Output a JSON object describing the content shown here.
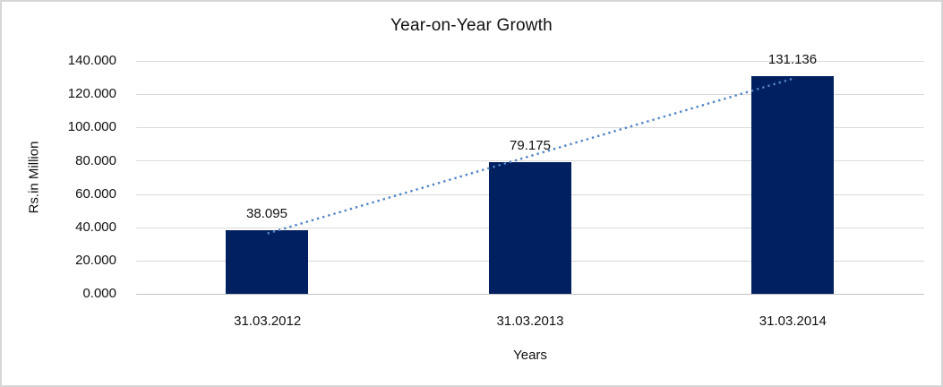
{
  "chart_data": {
    "type": "bar",
    "title": "Year-on-Year Growth",
    "xlabel": "Years",
    "ylabel": "Rs.in Million",
    "categories": [
      "31.03.2012",
      "31.03.2013",
      "31.03.2014"
    ],
    "values": [
      38.095,
      79.175,
      131.136
    ],
    "data_labels": [
      "38.095",
      "79.175",
      "131.136"
    ],
    "y_ticks": [
      "140.000",
      "120.000",
      "100.000",
      "80.000",
      "60.000",
      "40.000",
      "20.000",
      "0.000"
    ],
    "ylim": [
      0,
      140
    ],
    "grid": true,
    "legend": "none",
    "bar_color": "#002060",
    "trendline": {
      "type": "linear",
      "style": "dotted",
      "color": "#5284C5"
    },
    "colors": {
      "gridline": "#D9D9D9",
      "axis_line": "#C3C3C3",
      "frame_border": "#D6D6D6",
      "text": "#111111"
    }
  }
}
